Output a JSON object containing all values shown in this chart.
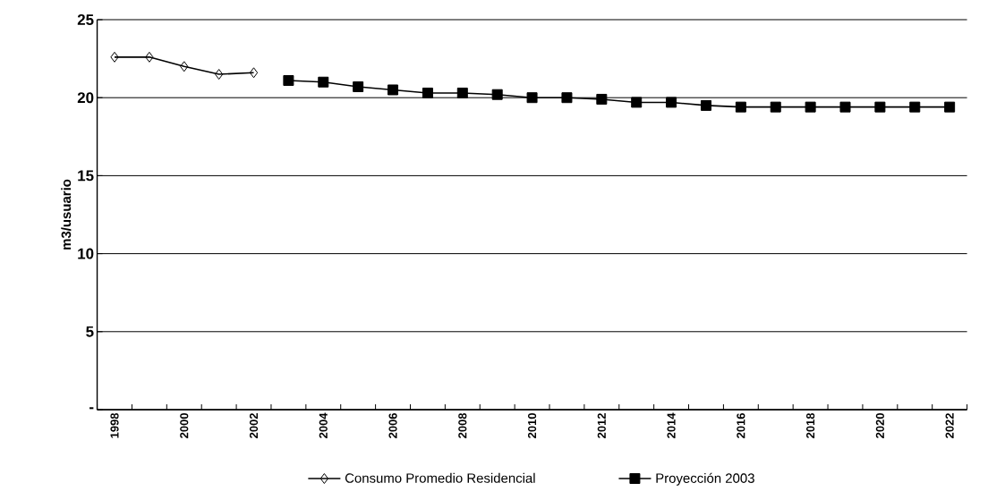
{
  "chart_data": {
    "type": "line",
    "ylabel": "m3/usuario",
    "categories": [
      "1998",
      null,
      "2000",
      null,
      "2002",
      null,
      "2004",
      null,
      "2006",
      null,
      "2008",
      null,
      "2010",
      null,
      "2012",
      null,
      "2014",
      null,
      "2016",
      null,
      "2018",
      null,
      "2020",
      null,
      "2022"
    ],
    "series": [
      {
        "name": "Consumo Promedio Residencial",
        "color": "#000000",
        "marker": "diamond",
        "values": [
          22.6,
          22.6,
          22.0,
          21.5,
          21.6,
          null,
          null,
          null,
          null,
          null,
          null,
          null,
          null,
          null,
          null,
          null,
          null,
          null,
          null,
          null,
          null,
          null,
          null,
          null,
          null
        ]
      },
      {
        "name": "Proyección 2003",
        "color": "#000000",
        "marker": "square",
        "values": [
          null,
          null,
          null,
          null,
          null,
          21.1,
          21.0,
          20.7,
          20.5,
          20.3,
          20.3,
          20.2,
          20.0,
          20.0,
          19.9,
          19.7,
          19.7,
          19.5,
          19.4,
          19.4,
          19.4,
          19.4,
          19.4,
          19.4,
          19.4
        ]
      }
    ],
    "ylim": [
      0,
      25
    ],
    "yticks": [
      {
        "value": 0,
        "label": "-"
      },
      5,
      10,
      15,
      20,
      25
    ],
    "grid": "y",
    "legend": "bottom",
    "line_style": "solid"
  }
}
